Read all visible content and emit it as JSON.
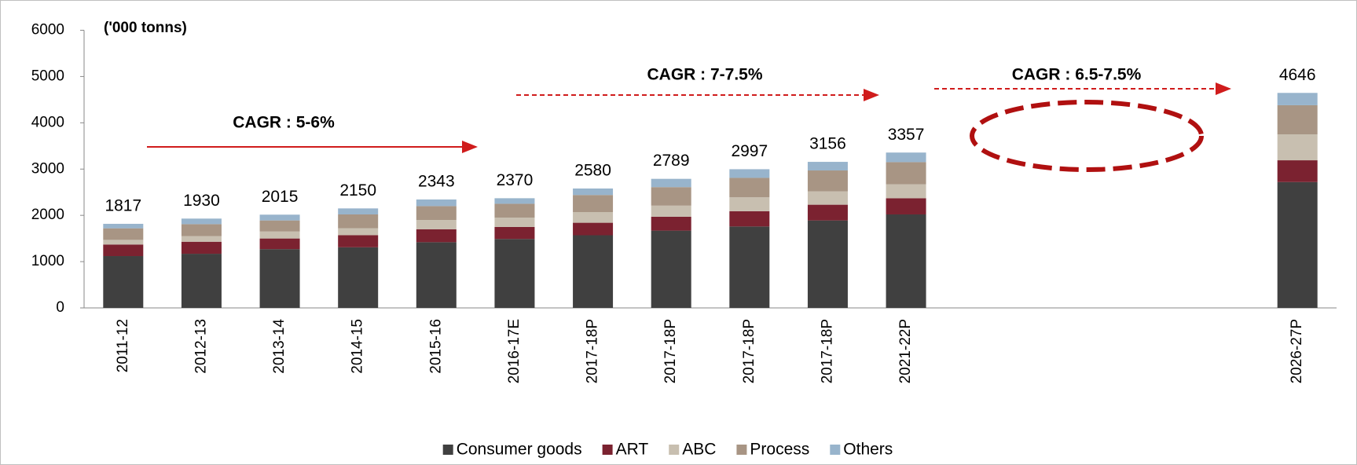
{
  "chart_data": {
    "type": "stacked_bar",
    "y_unit": "('000 tonns)",
    "categories": [
      "2011-12",
      "2012-13",
      "2013-14",
      "2014-15",
      "2015-16",
      "2016-17E",
      "2017-18P",
      "2017-18P",
      "2017-18P",
      "2017-18P",
      "2021-22P",
      null,
      null,
      null,
      null,
      "2026-27P"
    ],
    "series": [
      {
        "name": "Consumer goods",
        "color": "#404040",
        "values": [
          1120,
          1170,
          1270,
          1310,
          1420,
          1490,
          1570,
          1670,
          1760,
          1890,
          2020,
          null,
          null,
          null,
          null,
          2720
        ]
      },
      {
        "name": "ART",
        "color": "#7b2230",
        "values": [
          250,
          260,
          230,
          260,
          280,
          260,
          270,
          300,
          330,
          340,
          350,
          null,
          null,
          null,
          null,
          470
        ]
      },
      {
        "name": "ABC",
        "color": "#c8bfb0",
        "values": [
          100,
          120,
          150,
          150,
          200,
          200,
          230,
          240,
          300,
          290,
          300,
          null,
          null,
          null,
          null,
          560
        ]
      },
      {
        "name": "Process",
        "color": "#a89584",
        "values": [
          250,
          260,
          240,
          300,
          300,
          300,
          370,
          400,
          420,
          450,
          480,
          null,
          null,
          null,
          null,
          630
        ]
      },
      {
        "name": "Others",
        "color": "#98b4cc",
        "values": [
          97,
          120,
          125,
          130,
          143,
          120,
          140,
          179,
          187,
          186,
          207,
          null,
          null,
          null,
          null,
          266
        ]
      }
    ],
    "totals": [
      1817,
      1930,
      2015,
      2150,
      2343,
      2370,
      2580,
      2789,
      2997,
      3156,
      3357,
      null,
      null,
      null,
      null,
      4646
    ],
    "annotations": [
      "CAGR : 5-6%",
      "CAGR : 7-7.5%",
      "CAGR : 6.5-7.5%"
    ],
    "ylim": [
      0,
      6000
    ],
    "yticks": [
      0,
      1000,
      2000,
      3000,
      4000,
      5000,
      6000
    ],
    "grid": false,
    "legend": "bottom"
  }
}
